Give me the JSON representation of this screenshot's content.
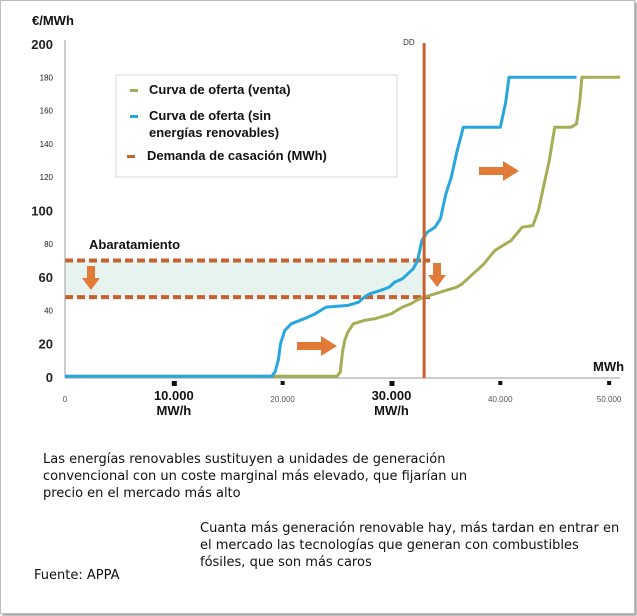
{
  "chart_data": {
    "type": "line",
    "title": "",
    "ylabel": "€/MWh",
    "xlabel": "MWh",
    "xlim": [
      0,
      51000
    ],
    "ylim": [
      0,
      200
    ],
    "y_ticks": [
      {
        "value": 0,
        "label": "0",
        "major": true
      },
      {
        "value": 20,
        "label": "20",
        "major": true
      },
      {
        "value": 40,
        "label": "40",
        "major": false
      },
      {
        "value": 60,
        "label": "60",
        "major": true
      },
      {
        "value": 80,
        "label": "80",
        "major": false
      },
      {
        "value": 100,
        "label": "100",
        "major": true
      },
      {
        "value": 120,
        "label": "120",
        "major": false
      },
      {
        "value": 140,
        "label": "140",
        "major": false
      },
      {
        "value": 160,
        "label": "160",
        "major": false
      },
      {
        "value": 180,
        "label": "180",
        "major": false
      },
      {
        "value": 200,
        "label": "200",
        "major": true
      }
    ],
    "x_ticks": [
      {
        "value": 0,
        "label": "0"
      },
      {
        "value": 20000,
        "label": "20.000"
      },
      {
        "value": 40000,
        "label": "40.000"
      },
      {
        "value": 50000,
        "label": "50.000"
      }
    ],
    "x_big_ticks": [
      {
        "value": 10000,
        "label1": "10.000",
        "label2": "MW/h"
      },
      {
        "value": 30000,
        "label1": "30.000",
        "label2": "MW/h"
      }
    ],
    "series": [
      {
        "name": "Curva de oferta (venta)",
        "color": "#a6ad55",
        "points": [
          [
            0,
            0.5
          ],
          [
            25000,
            0.5
          ],
          [
            25300,
            3
          ],
          [
            25500,
            15
          ],
          [
            25700,
            22
          ],
          [
            26000,
            27
          ],
          [
            26500,
            32
          ],
          [
            27500,
            34
          ],
          [
            28500,
            35
          ],
          [
            29000,
            36
          ],
          [
            30000,
            38
          ],
          [
            30500,
            40
          ],
          [
            31000,
            42
          ],
          [
            31800,
            44
          ],
          [
            32300,
            46
          ],
          [
            33000,
            48
          ],
          [
            34000,
            50
          ],
          [
            35000,
            52
          ],
          [
            36000,
            54
          ],
          [
            36500,
            56
          ],
          [
            37500,
            62
          ],
          [
            38500,
            68
          ],
          [
            39000,
            72
          ],
          [
            39500,
            76
          ],
          [
            40000,
            78
          ],
          [
            40500,
            80
          ],
          [
            41000,
            82
          ],
          [
            42000,
            90
          ],
          [
            43000,
            91
          ],
          [
            43500,
            100
          ],
          [
            44000,
            115
          ],
          [
            44500,
            130
          ],
          [
            45000,
            150
          ],
          [
            46500,
            150
          ],
          [
            47000,
            152
          ],
          [
            47300,
            165
          ],
          [
            47500,
            180
          ],
          [
            51000,
            180
          ]
        ]
      },
      {
        "name": "Curva de oferta (sin energías renovables)",
        "color": "#27a7dd",
        "points": [
          [
            0,
            0.5
          ],
          [
            19000,
            0.5
          ],
          [
            19300,
            3
          ],
          [
            19600,
            10
          ],
          [
            19800,
            20
          ],
          [
            20200,
            28
          ],
          [
            20800,
            32
          ],
          [
            22000,
            35
          ],
          [
            23000,
            38
          ],
          [
            23500,
            40
          ],
          [
            24000,
            42
          ],
          [
            26000,
            43
          ],
          [
            27000,
            45
          ],
          [
            27500,
            48
          ],
          [
            28000,
            50
          ],
          [
            29000,
            52
          ],
          [
            29800,
            54
          ],
          [
            30300,
            57
          ],
          [
            31000,
            59
          ],
          [
            31500,
            62
          ],
          [
            32000,
            65
          ],
          [
            32400,
            70
          ],
          [
            32800,
            82
          ],
          [
            33300,
            87
          ],
          [
            34000,
            90
          ],
          [
            34500,
            95
          ],
          [
            35000,
            110
          ],
          [
            35500,
            120
          ],
          [
            36000,
            135
          ],
          [
            36600,
            150
          ],
          [
            40000,
            150
          ],
          [
            40500,
            165
          ],
          [
            40800,
            180
          ],
          [
            47000,
            180
          ]
        ]
      }
    ],
    "demand": {
      "name": "Demanda de casación (MWh)",
      "label": "DD",
      "x": 33000,
      "color": "#c8602f"
    },
    "band": {
      "y_high": 70,
      "y_low": 48,
      "label": "Abaratamiento",
      "color": "#c8602f",
      "fill": "#e7f3ef"
    },
    "legend": {
      "position": "top-center"
    },
    "arrows_color": "#e07a36"
  },
  "notes": {
    "note1": "Las energías renovables sustituyen a unidades de generación convencional con un coste marginal más elevado, que fijarían un precio en el mercado más alto",
    "note2": "Cuanta más generación renovable hay, más tardan en entrar en el mercado las tecnologías que generan con combustibles fósiles, que son más caros",
    "source": "Fuente: APPA"
  }
}
